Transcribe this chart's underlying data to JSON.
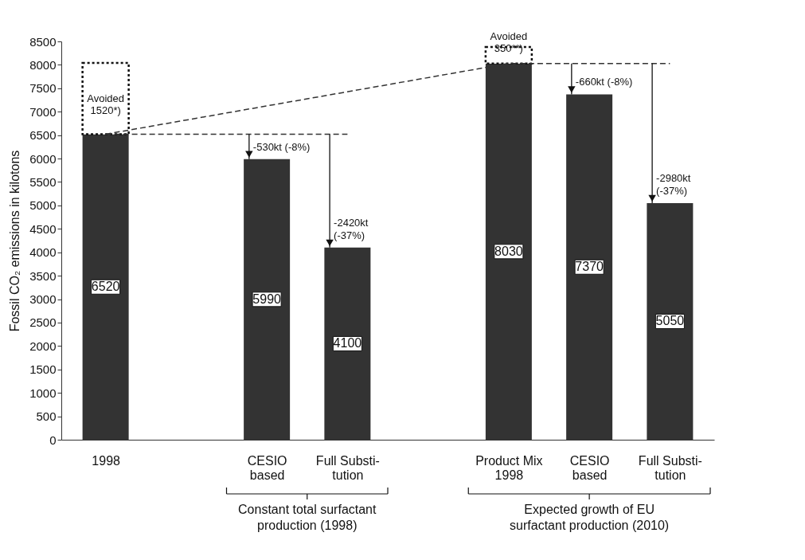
{
  "chart_data": {
    "type": "bar",
    "ylabel": "Fossil CO₂ emissions in kilotons",
    "categories": [
      "1998",
      null,
      "CESIO\nbased",
      "Full Substi-\ntution",
      null,
      "Product Mix\n1998",
      "CESIO\nbased",
      "Full Substi-\ntution"
    ],
    "stacked": true,
    "grid": false,
    "ylim": [
      0,
      8500
    ],
    "yticks": [
      0,
      500,
      1000,
      1500,
      2000,
      2500,
      3000,
      3500,
      4000,
      4500,
      5000,
      5500,
      6000,
      6500,
      7000,
      7500,
      8000,
      8500
    ],
    "series": [
      {
        "color": "#333333",
        "values": [
          6520,
          null,
          5990,
          4100,
          null,
          8030,
          7370,
          5050
        ],
        "value_labels": [
          "6520",
          null,
          "5990",
          "4100",
          null,
          "8030",
          "7370",
          "5050"
        ]
      },
      {
        "color": "#ffffff",
        "line_style": "dotted",
        "values": [
          1520,
          null,
          null,
          null,
          null,
          350,
          null,
          null
        ],
        "value_labels": [
          "Avoided\n1520*)",
          null,
          null,
          null,
          null,
          "Avoided\n350**)",
          null,
          null
        ]
      },
      {
        "type": "line",
        "color": "#333333",
        "line_style": "dashed",
        "values": [
          6520,
          null,
          6520,
          6520,
          null,
          null,
          null,
          null
        ]
      },
      {
        "type": "line",
        "color": "#333333",
        "line_style": "dashed",
        "values": [
          6520,
          null,
          null,
          null,
          null,
          8030,
          8030,
          8030
        ]
      }
    ],
    "annotations": [
      {
        "text": "-530kt (-8%)",
        "y": 5990
      },
      {
        "text": "-2420kt\n(-37%)",
        "y": 4100
      },
      {
        "text": "-660kt (-8%)",
        "y": 7370
      },
      {
        "text": "-2980kt\n(-37%)",
        "y": 5050
      },
      "Constant total surfactant\nproduction (1998)",
      "Expected growth of EU\nsurfactant production (2010)"
    ]
  }
}
